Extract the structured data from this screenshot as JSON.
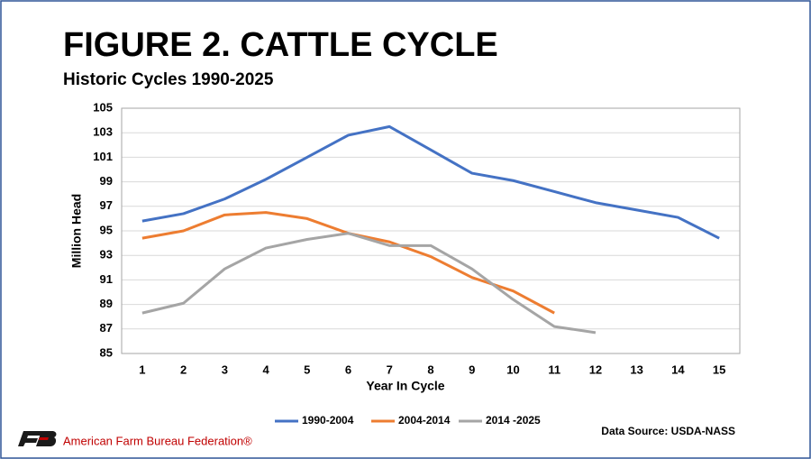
{
  "chart_data": {
    "type": "line",
    "title": "FIGURE 2. CATTLE CYCLE",
    "subtitle": "Historic Cycles 1990-2025",
    "ylabel": "Million Head",
    "xlabel": "Year In Cycle",
    "categories": [
      1,
      2,
      3,
      4,
      5,
      6,
      7,
      8,
      9,
      10,
      11,
      12,
      13,
      14,
      15
    ],
    "series": [
      {
        "name": "1990-2004",
        "color": "#4472c4",
        "values": [
          95.8,
          96.4,
          97.6,
          99.2,
          101.0,
          102.8,
          103.5,
          101.6,
          99.7,
          99.1,
          98.2,
          97.3,
          96.7,
          96.1,
          94.4
        ]
      },
      {
        "name": "2004-2014",
        "color": "#ed7d31",
        "values": [
          94.4,
          95.0,
          96.3,
          96.5,
          96.0,
          94.8,
          94.1,
          92.9,
          91.2,
          90.1,
          88.3,
          null,
          null,
          null,
          null
        ]
      },
      {
        "name": "2014 -2025",
        "color": "#a5a5a5",
        "values": [
          88.3,
          89.1,
          91.9,
          93.6,
          94.3,
          94.8,
          93.8,
          93.8,
          91.9,
          89.4,
          87.2,
          86.7,
          null,
          null,
          null
        ]
      }
    ],
    "ylim": [
      85,
      105
    ],
    "yticks": [
      85,
      87,
      89,
      91,
      93,
      95,
      97,
      99,
      101,
      103,
      105
    ],
    "grid": true,
    "legend": "bottom",
    "source": "Data Source:  USDA-NASS"
  },
  "footer": {
    "logo_text": "American Farm Bureau Federation®"
  }
}
